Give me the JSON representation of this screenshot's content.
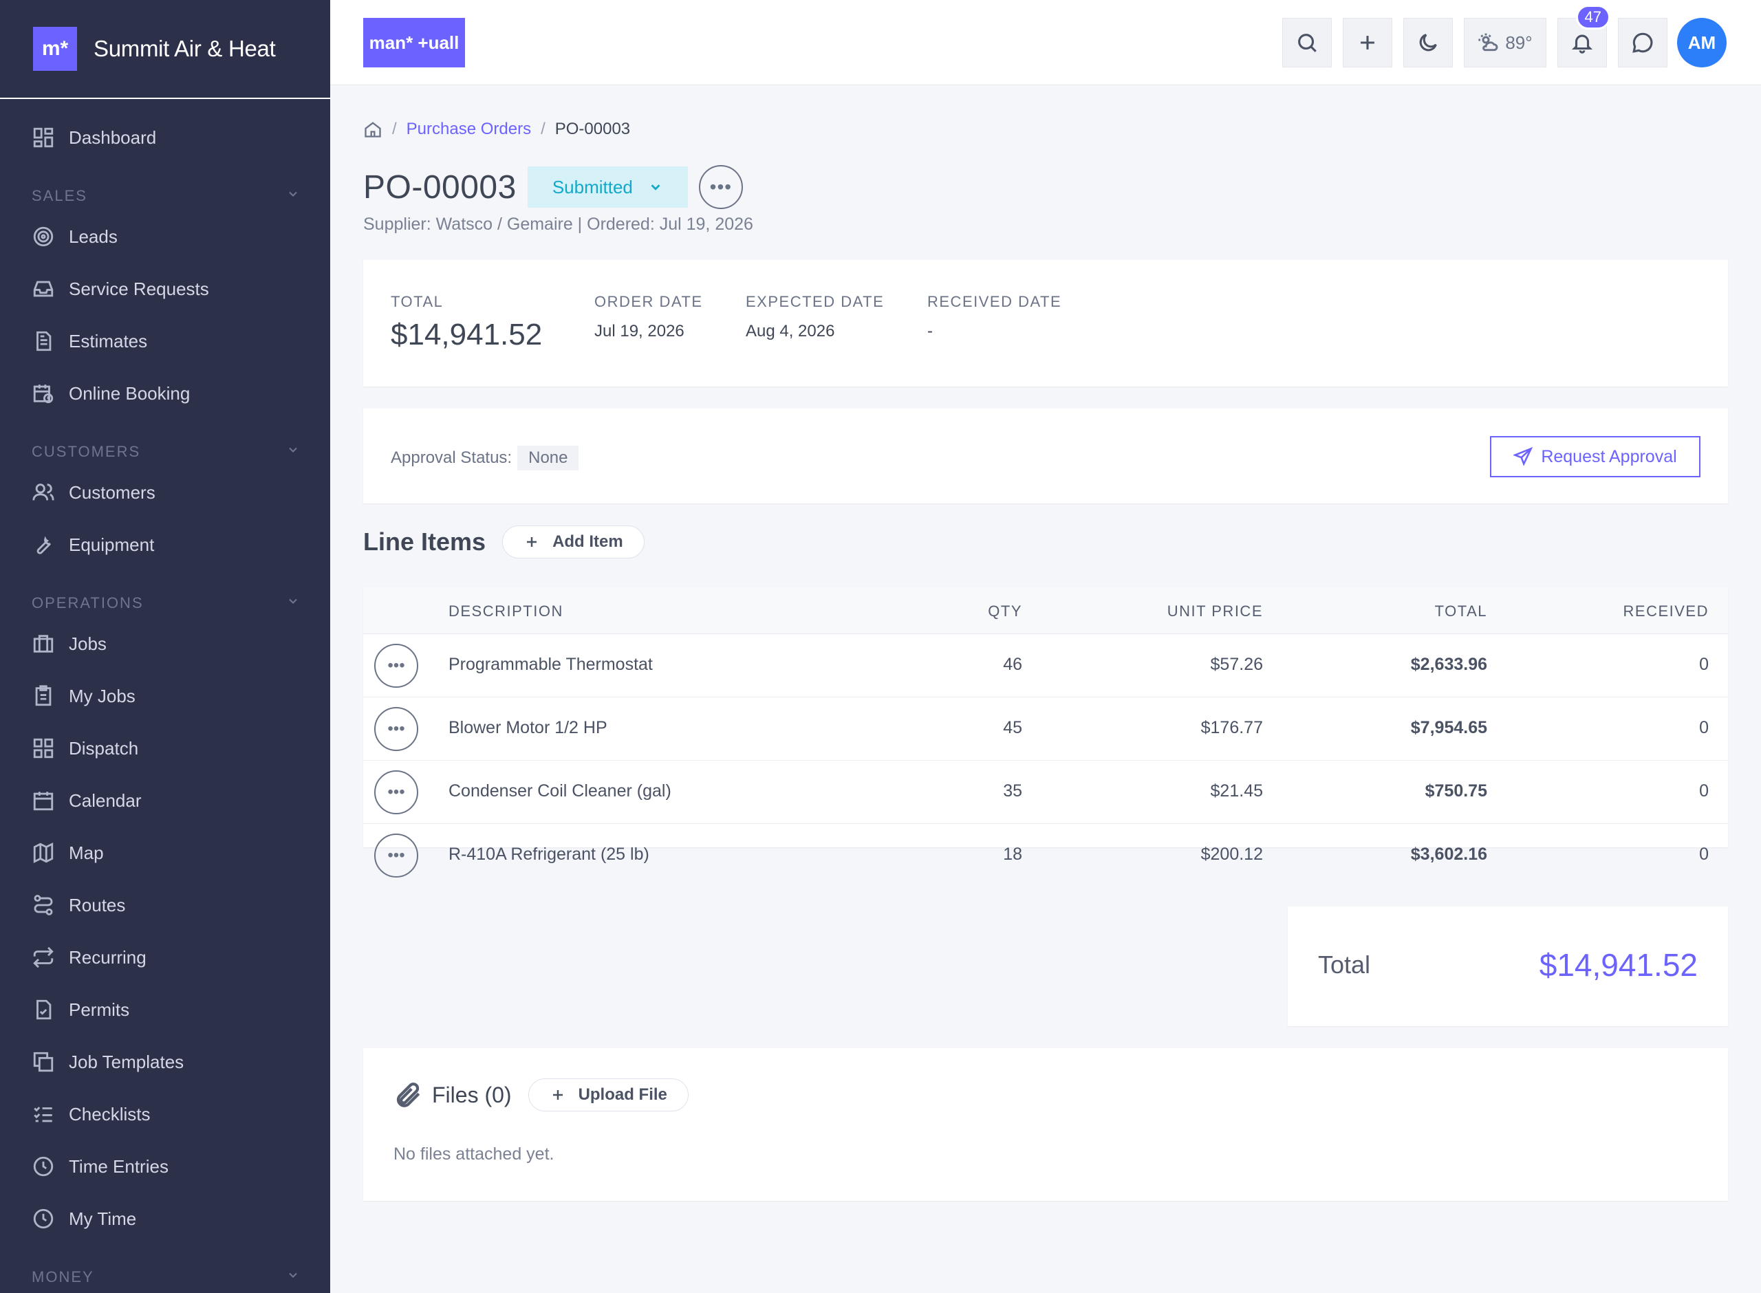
{
  "brand": {
    "logo": "m*",
    "name": "Summit Air & Heat"
  },
  "header": {
    "logo": "man* +uall",
    "weather": "89°",
    "notifications": "47",
    "avatar": "AM"
  },
  "sidebar": {
    "dashboard": "Dashboard",
    "sections": [
      {
        "label": "SALES",
        "items": [
          "Leads",
          "Service Requests",
          "Estimates",
          "Online Booking"
        ]
      },
      {
        "label": "CUSTOMERS",
        "items": [
          "Customers",
          "Equipment"
        ]
      },
      {
        "label": "OPERATIONS",
        "items": [
          "Jobs",
          "My Jobs",
          "Dispatch",
          "Calendar",
          "Map",
          "Routes",
          "Recurring",
          "Permits",
          "Job Templates",
          "Checklists",
          "Time Entries",
          "My Time"
        ]
      },
      {
        "label": "MONEY",
        "items": []
      }
    ]
  },
  "breadcrumb": {
    "parent": "Purchase Orders",
    "current": "PO-00003"
  },
  "po": {
    "number": "PO-00003",
    "status": "Submitted",
    "subtitle": "Supplier: Watsco / Gemaire | Ordered: Jul 19, 2026"
  },
  "summary": {
    "total_label": "TOTAL",
    "total": "$14,941.52",
    "order_label": "ORDER DATE",
    "order": "Jul 19, 2026",
    "expected_label": "EXPECTED DATE",
    "expected": "Aug 4, 2026",
    "received_label": "RECEIVED DATE",
    "received": "-"
  },
  "approval": {
    "label": "Approval Status:",
    "value": "None",
    "button": "Request Approval"
  },
  "line_items": {
    "title": "Line Items",
    "add_button": "Add Item",
    "columns": [
      "DESCRIPTION",
      "QTY",
      "UNIT PRICE",
      "TOTAL",
      "RECEIVED"
    ],
    "rows": [
      {
        "description": "Programmable Thermostat",
        "qty": "46",
        "unit_price": "$57.26",
        "total": "$2,633.96",
        "received": "0"
      },
      {
        "description": "Blower Motor 1/2 HP",
        "qty": "45",
        "unit_price": "$176.77",
        "total": "$7,954.65",
        "received": "0"
      },
      {
        "description": "Condenser Coil Cleaner (gal)",
        "qty": "35",
        "unit_price": "$21.45",
        "total": "$750.75",
        "received": "0"
      },
      {
        "description": "R-410A Refrigerant (25 lb)",
        "qty": "18",
        "unit_price": "$200.12",
        "total": "$3,602.16",
        "received": "0"
      }
    ]
  },
  "grand_total": {
    "label": "Total",
    "value": "$14,941.52"
  },
  "files": {
    "title": "Files (0)",
    "upload_button": "Upload File",
    "empty": "No files attached yet."
  },
  "colors": {
    "accent": "#6c63ff",
    "sidebar": "#2c3048",
    "status_bg": "#d7f1f8",
    "status_text": "#11a9c9",
    "avatar": "#2d7ff9"
  }
}
